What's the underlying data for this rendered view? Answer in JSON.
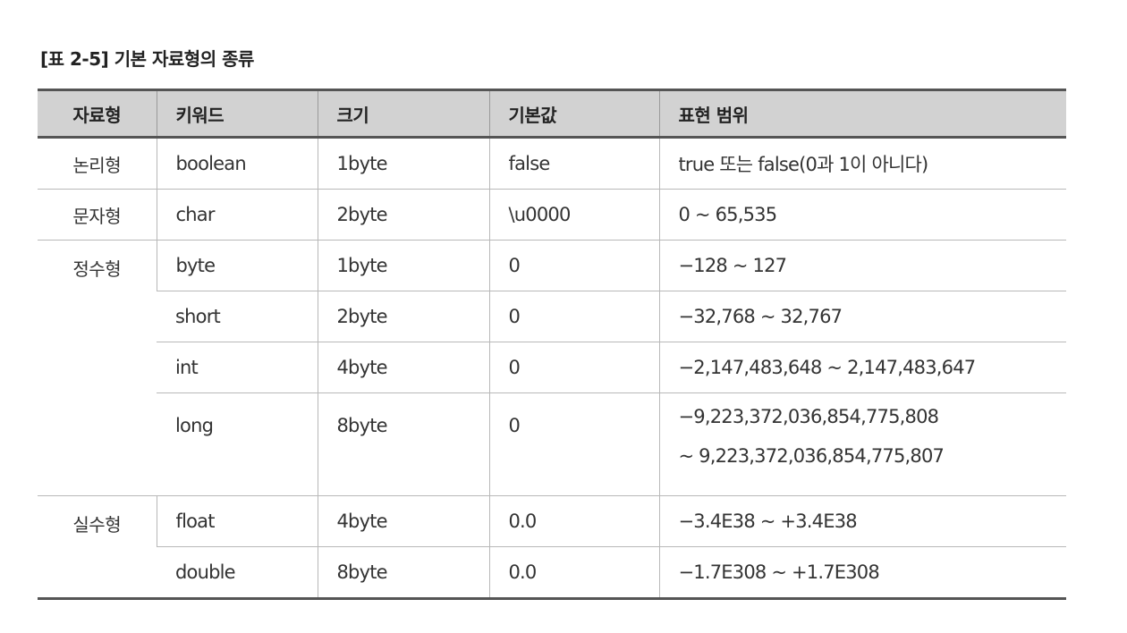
{
  "caption": "[표 2-5] 기본 자료형의 종류",
  "headers": [
    "자료형",
    "키워드",
    "크기",
    "기본값",
    "표현 범위"
  ],
  "groups": [
    {
      "name": "논리형",
      "rows": [
        {
          "keyword": "boolean",
          "size": "1byte",
          "default": "false",
          "range": "true 또는 false(0과 1이 아니다)"
        }
      ]
    },
    {
      "name": "문자형",
      "rows": [
        {
          "keyword": "char",
          "size": "2byte",
          "default": "\\u0000",
          "range": "0 ~ 65,535"
        }
      ]
    },
    {
      "name": "정수형",
      "rows": [
        {
          "keyword": "byte",
          "size": "1byte",
          "default": "0",
          "range": "−128 ~ 127"
        },
        {
          "keyword": "short",
          "size": "2byte",
          "default": "0",
          "range": "−32,768 ~ 32,767"
        },
        {
          "keyword": "int",
          "size": "4byte",
          "default": "0",
          "range": "−2,147,483,648 ~ 2,147,483,647"
        },
        {
          "keyword": "long",
          "size": "8byte",
          "default": "0",
          "range": "−9,223,372,036,854,775,808",
          "range2": "~ 9,223,372,036,854,775,807"
        }
      ]
    },
    {
      "name": "실수형",
      "rows": [
        {
          "keyword": "float",
          "size": "4byte",
          "default": "0.0",
          "range": "−3.4E38 ~ +3.4E38"
        },
        {
          "keyword": "double",
          "size": "8byte",
          "default": "0.0",
          "range": "−1.7E308 ~ +1.7E308"
        }
      ]
    }
  ]
}
